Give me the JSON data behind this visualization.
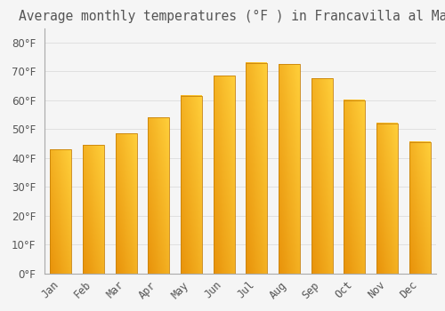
{
  "title": "Average monthly temperatures (°F ) in Francavilla al Mare",
  "months": [
    "Jan",
    "Feb",
    "Mar",
    "Apr",
    "May",
    "Jun",
    "Jul",
    "Aug",
    "Sep",
    "Oct",
    "Nov",
    "Dec"
  ],
  "values": [
    43,
    44.5,
    48.5,
    54,
    61.5,
    68.5,
    73,
    72.5,
    67.5,
    60,
    52,
    45.5
  ],
  "bar_color_bottom": "#E8920A",
  "bar_color_top": "#FFCF3A",
  "bar_color_left": "#F5A623",
  "bar_color_right": "#FDB931",
  "bar_edge_color": "#C8820A",
  "background_color": "#F5F5F5",
  "grid_color": "#E0E0E0",
  "text_color": "#555555",
  "ylim": [
    0,
    85
  ],
  "yticks": [
    0,
    10,
    20,
    30,
    40,
    50,
    60,
    70,
    80
  ],
  "title_fontsize": 10.5,
  "tick_fontsize": 8.5,
  "bar_width": 0.65
}
